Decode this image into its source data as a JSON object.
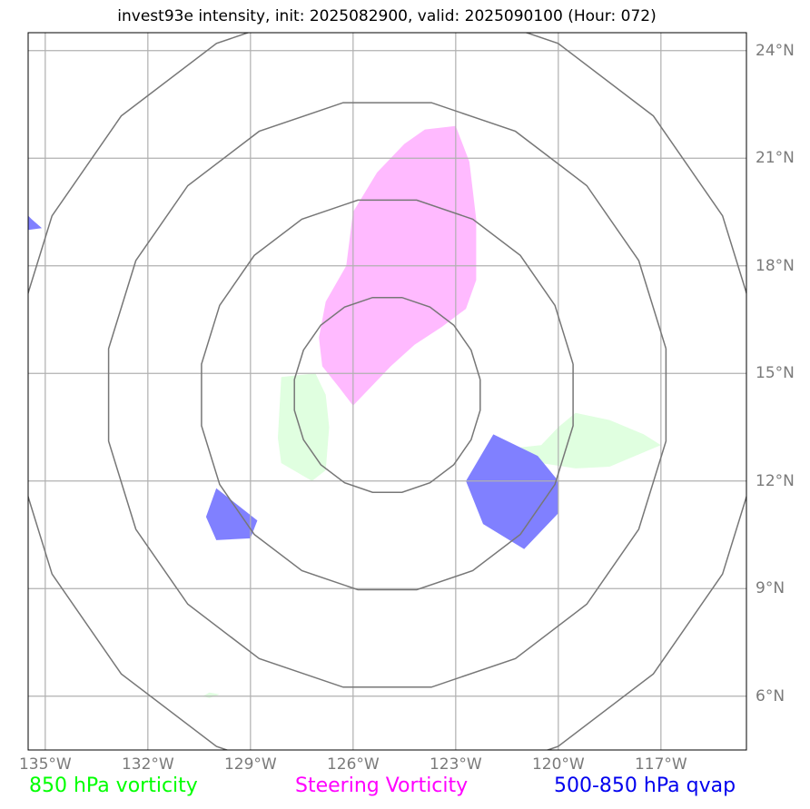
{
  "title": "invest93e intensity, init: 2025082900, valid: 2025090100 (Hour: 072)",
  "map": {
    "lon_range": [
      -135.5,
      -114.5
    ],
    "lat_range": [
      4.5,
      24.5
    ],
    "lon_ticks": [
      {
        "value": -135,
        "label": "135°W"
      },
      {
        "value": -132,
        "label": "132°W"
      },
      {
        "value": -129,
        "label": "129°W"
      },
      {
        "value": -126,
        "label": "126°W"
      },
      {
        "value": -123,
        "label": "123°W"
      },
      {
        "value": -120,
        "label": "120°W"
      },
      {
        "value": -117,
        "label": "117°W"
      }
    ],
    "lat_ticks": [
      {
        "value": 24,
        "label": "24°N"
      },
      {
        "value": 21,
        "label": "21°N"
      },
      {
        "value": 18,
        "label": "18°N"
      },
      {
        "value": 15,
        "label": "15°N"
      },
      {
        "value": 12,
        "label": "12°N"
      },
      {
        "value": 9,
        "label": "9°N"
      },
      {
        "value": 6,
        "label": "6°N"
      }
    ],
    "grid": true,
    "range_rings": {
      "center": [
        -125.0,
        14.4
      ],
      "radii_deg": [
        2.75,
        5.5,
        8.25,
        11.0
      ]
    },
    "fields": [
      {
        "name": "850 hPa vorticity",
        "color": "#e0ffe0",
        "polygons": [
          [
            [
              -127.1,
              15.0
            ],
            [
              -128.1,
              14.9
            ],
            [
              -128.2,
              13.2
            ],
            [
              -128.1,
              12.5
            ],
            [
              -127.2,
              12.0
            ],
            [
              -126.8,
              12.3
            ],
            [
              -126.7,
              13.5
            ],
            [
              -126.8,
              14.4
            ]
          ],
          [
            [
              -121.5,
              12.9
            ],
            [
              -120.5,
              13.0
            ],
            [
              -120.0,
              13.5
            ],
            [
              -119.5,
              13.9
            ],
            [
              -118.5,
              13.7
            ],
            [
              -117.5,
              13.3
            ],
            [
              -117.0,
              13.0
            ],
            [
              -117.5,
              12.8
            ],
            [
              -118.5,
              12.4
            ],
            [
              -119.5,
              12.35
            ],
            [
              -120.5,
              12.5
            ],
            [
              -121.3,
              12.7
            ]
          ],
          [
            [
              -130.4,
              6.0
            ],
            [
              -130.2,
              6.1
            ],
            [
              -129.9,
              6.05
            ],
            [
              -130.2,
              5.95
            ]
          ]
        ]
      },
      {
        "name": "Steering Vorticity",
        "color": "#ffbaff",
        "polygons": [
          [
            [
              -126.0,
              14.1
            ],
            [
              -126.4,
              14.6
            ],
            [
              -126.9,
              15.2
            ],
            [
              -127.0,
              16.0
            ],
            [
              -126.8,
              17.0
            ],
            [
              -126.2,
              18.0
            ],
            [
              -126.0,
              19.5
            ],
            [
              -125.3,
              20.6
            ],
            [
              -124.5,
              21.4
            ],
            [
              -123.9,
              21.8
            ],
            [
              -123.0,
              21.9
            ],
            [
              -122.6,
              20.9
            ],
            [
              -122.4,
              19.3
            ],
            [
              -122.4,
              17.6
            ],
            [
              -122.7,
              16.8
            ],
            [
              -123.4,
              16.3
            ],
            [
              -124.2,
              15.8
            ],
            [
              -124.9,
              15.2
            ]
          ]
        ]
      },
      {
        "name": "500-850 hPa qvap",
        "color": "#8080ff",
        "polygons": [
          [
            [
              -130.0,
              11.8
            ],
            [
              -130.3,
              11.0
            ],
            [
              -130.0,
              10.35
            ],
            [
              -129.0,
              10.4
            ],
            [
              -128.8,
              10.9
            ],
            [
              -129.6,
              11.5
            ]
          ],
          [
            [
              -121.9,
              13.3
            ],
            [
              -122.7,
              12.0
            ],
            [
              -122.2,
              10.8
            ],
            [
              -121.0,
              10.1
            ],
            [
              -120.0,
              11.1
            ],
            [
              -120.0,
              12.0
            ],
            [
              -120.6,
              12.7
            ]
          ],
          [
            [
              -135.5,
              19.4
            ],
            [
              -135.4,
              19.3
            ],
            [
              -135.1,
              19.05
            ],
            [
              -135.5,
              19.0
            ]
          ]
        ]
      }
    ]
  },
  "legend": [
    {
      "label": "850 hPa vorticity",
      "color": "#00ff00"
    },
    {
      "label": "Steering Vorticity",
      "color": "#ff00ff"
    },
    {
      "label": "500-850 hPa qvap",
      "color": "#0000ee"
    }
  ]
}
